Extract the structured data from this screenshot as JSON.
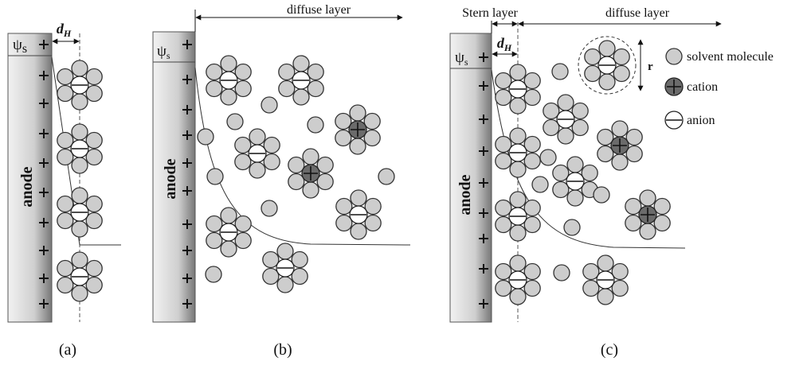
{
  "panels": [
    {
      "label": "(a)",
      "electrode": "anode",
      "surface_potential": {
        "symbol": "ψ",
        "subscript": "s"
      },
      "stern_thickness": {
        "symbol": "d",
        "subscript": "H"
      }
    },
    {
      "label": "(b)",
      "electrode": "anode",
      "surface_potential": {
        "symbol": "ψ",
        "subscript": "s"
      },
      "diffuse_layer": "diffuse layer"
    },
    {
      "label": "(c)",
      "electrode": "anode",
      "surface_potential": {
        "symbol": "ψ",
        "subscript": "s"
      },
      "stern_thickness": {
        "symbol": "d",
        "subscript": "H"
      },
      "stern_layer": "Stern layer",
      "diffuse_layer": "diffuse layer",
      "radius": "r"
    }
  ],
  "legend": [
    "solvent molecule",
    "cation",
    "anion"
  ]
}
